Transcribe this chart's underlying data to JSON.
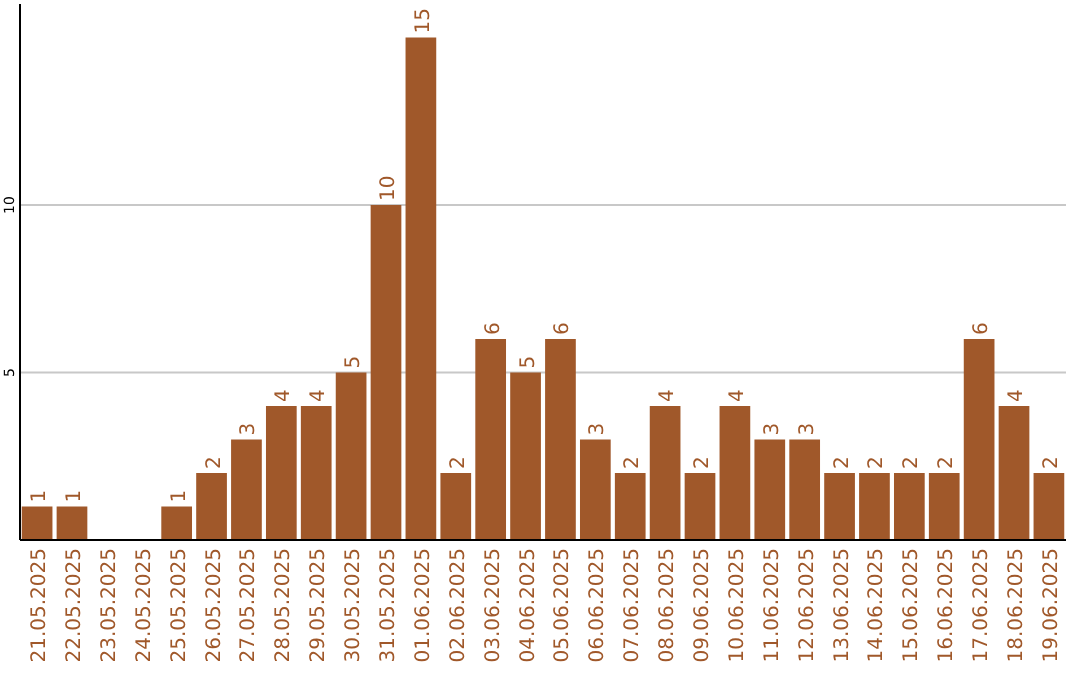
{
  "chart_data": {
    "type": "bar",
    "categories": [
      "21.05.2025",
      "22.05.2025",
      "23.05.2025",
      "24.05.2025",
      "25.05.2025",
      "26.05.2025",
      "27.05.2025",
      "28.05.2025",
      "29.05.2025",
      "30.05.2025",
      "31.05.2025",
      "01.06.2025",
      "02.06.2025",
      "03.06.2025",
      "04.06.2025",
      "05.06.2025",
      "06.06.2025",
      "07.06.2025",
      "08.06.2025",
      "09.06.2025",
      "10.06.2025",
      "11.06.2025",
      "12.06.2025",
      "13.06.2025",
      "14.06.2025",
      "15.06.2025",
      "16.06.2025",
      "17.06.2025",
      "18.06.2025",
      "19.06.2025"
    ],
    "values": [
      1,
      1,
      null,
      null,
      1,
      2,
      3,
      4,
      4,
      5,
      10,
      15,
      2,
      6,
      5,
      6,
      3,
      2,
      4,
      2,
      4,
      3,
      3,
      2,
      2,
      2,
      2,
      6,
      4,
      2
    ],
    "color": "#a0582a",
    "ylim": [
      0,
      16
    ],
    "yticks": [
      5,
      10
    ],
    "grid": "y",
    "data_labels": true
  }
}
